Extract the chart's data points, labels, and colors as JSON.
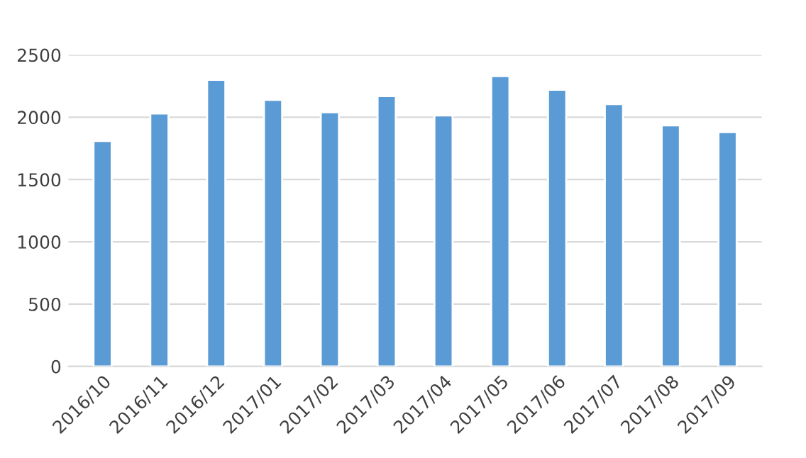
{
  "chart_data": {
    "type": "bar",
    "categories": [
      "2016/10",
      "2016/11",
      "2016/12",
      "2017/01",
      "2017/02",
      "2017/03",
      "2017/04",
      "2017/05",
      "2017/06",
      "2017/07",
      "2017/08",
      "2017/09"
    ],
    "values": [
      1810,
      2030,
      2300,
      2140,
      2040,
      2170,
      2015,
      2330,
      2220,
      2105,
      1935,
      1880
    ],
    "color": "#5b9bd5",
    "ylim": [
      0,
      2500
    ],
    "yticks": [
      0,
      500,
      1000,
      1500,
      2000,
      2500
    ],
    "grid": "y",
    "legend": false
  }
}
